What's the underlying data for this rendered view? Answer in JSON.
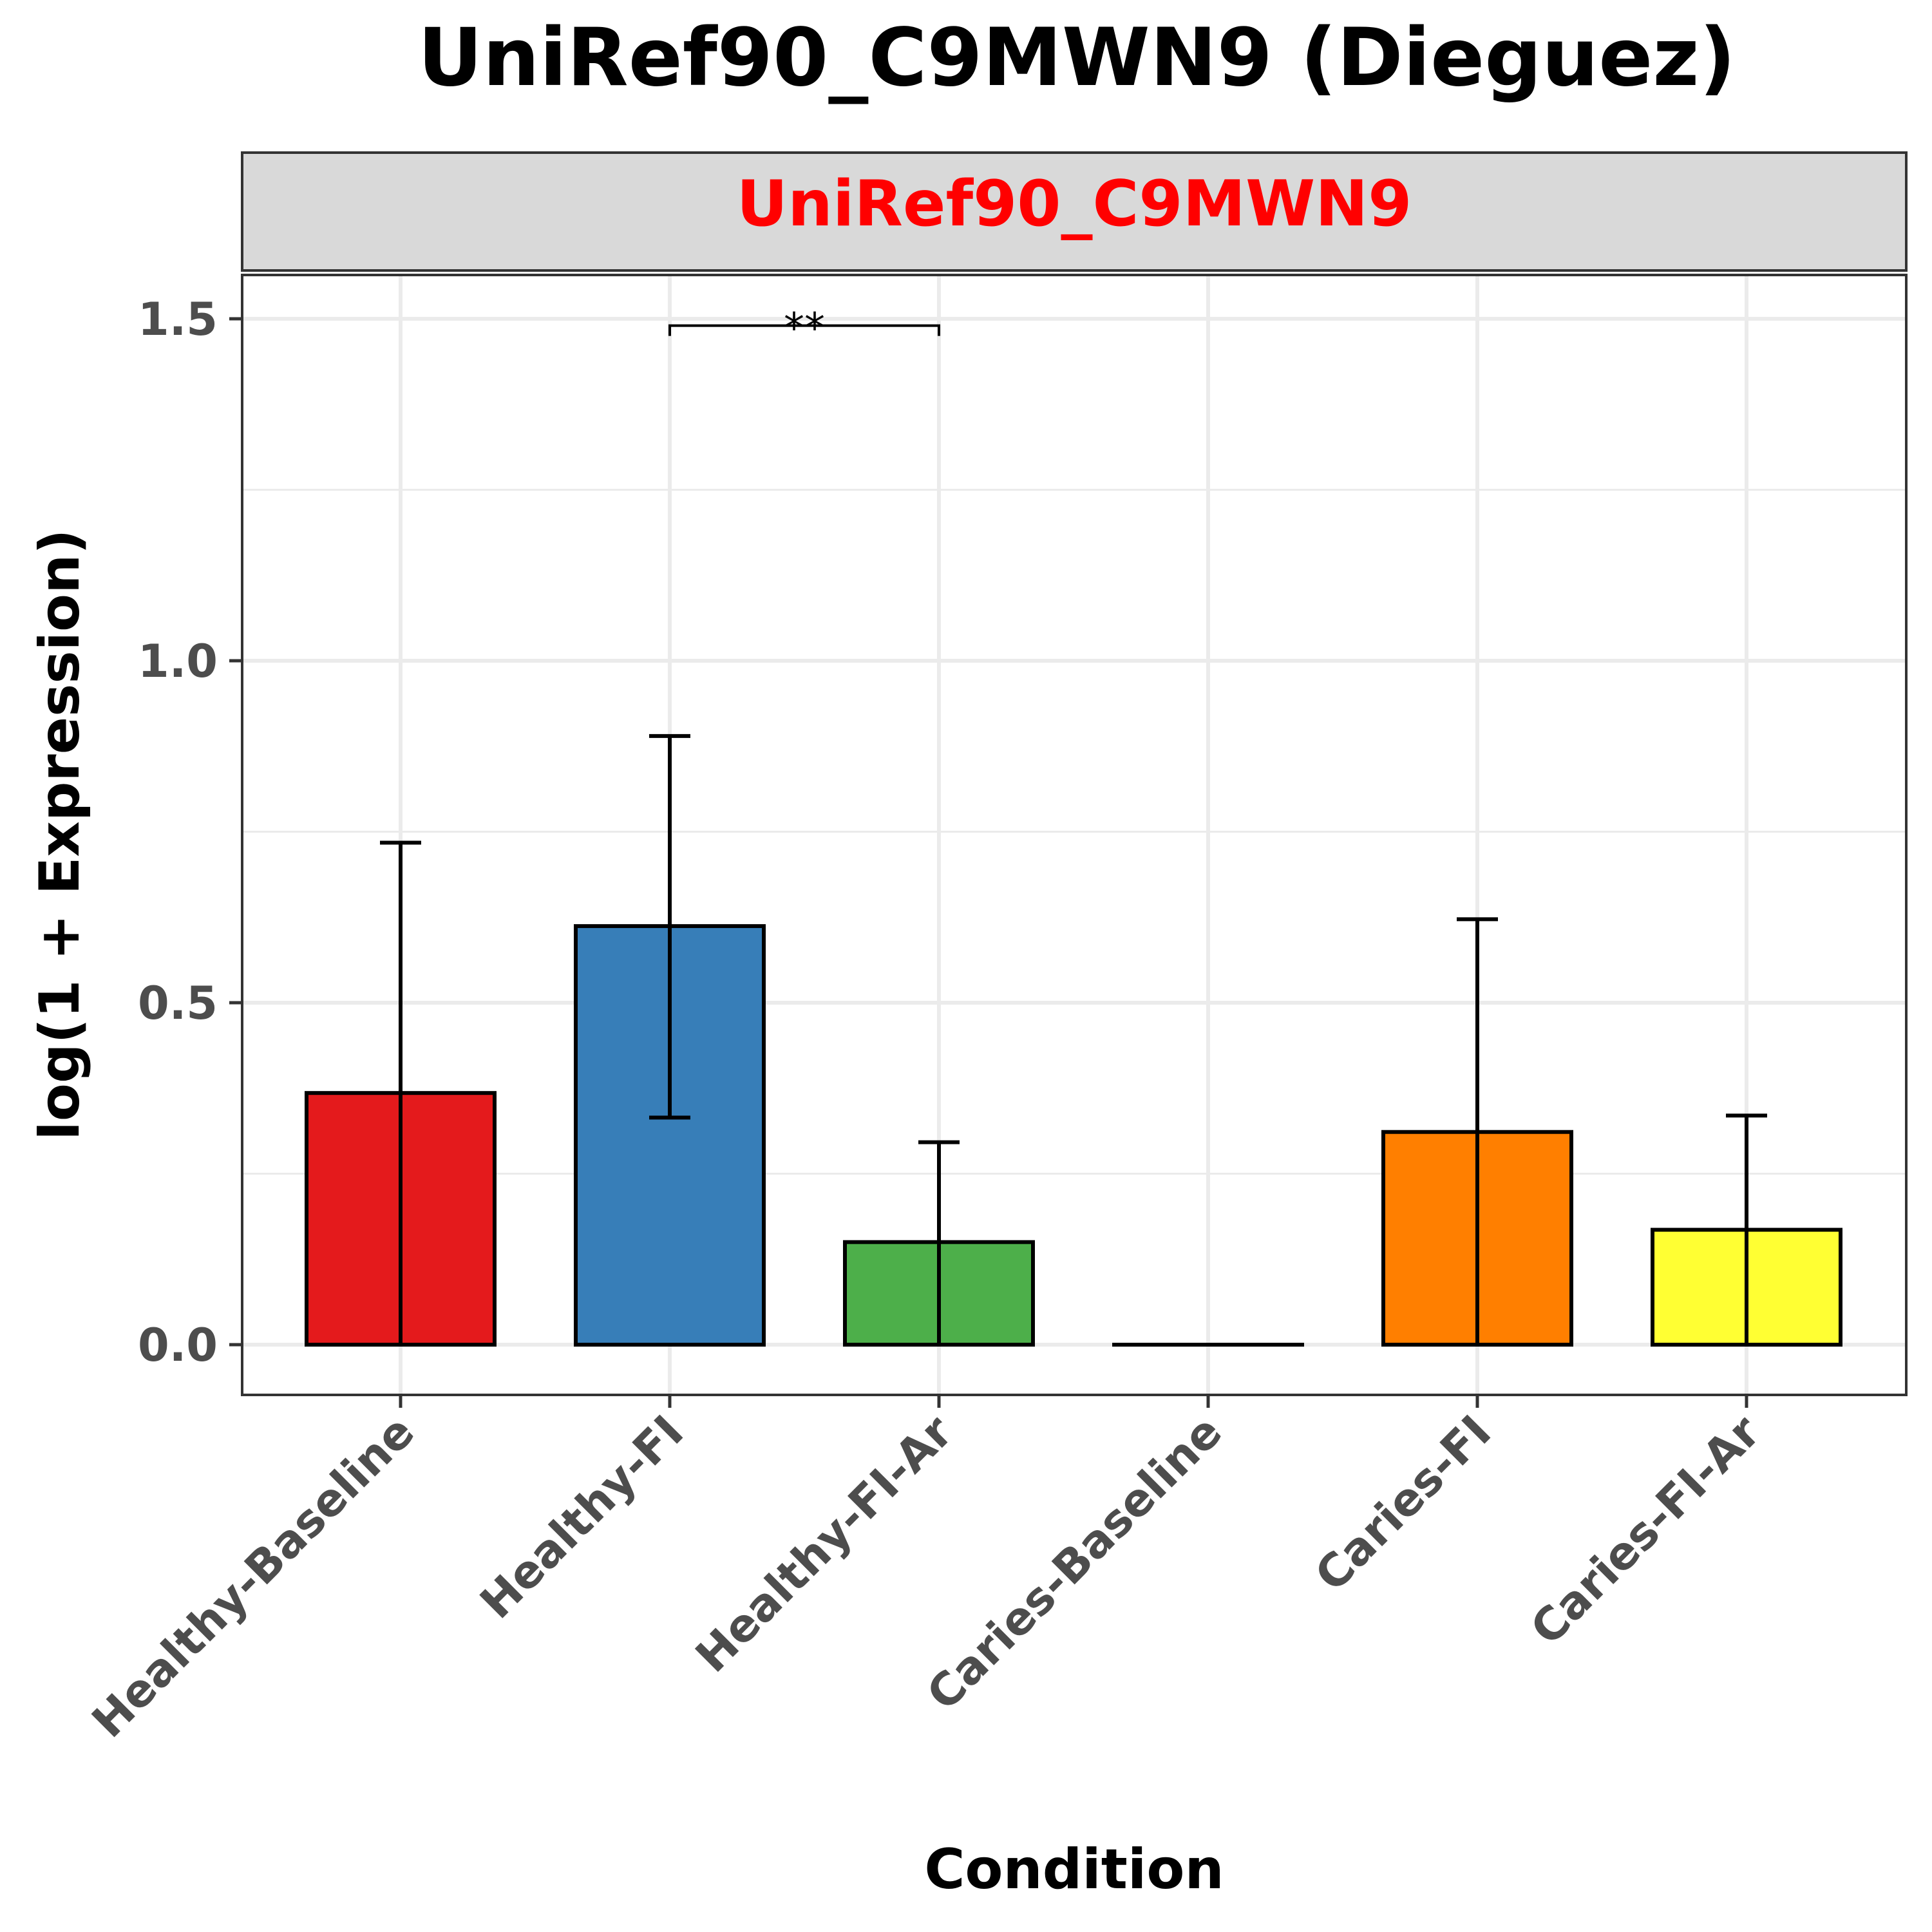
{
  "chart_data": {
    "type": "bar",
    "title": "UniRef90_C9MWN9 (Dieguez)",
    "facet_label": "UniRef90_C9MWN9",
    "xlabel": "Condition",
    "ylabel": "log(1 + Expression)",
    "ylim": [
      -0.07,
      1.56
    ],
    "yticks": [
      0.0,
      0.5,
      1.0,
      1.5
    ],
    "ytick_labels": [
      "0.0",
      "0.5",
      "1.0",
      "1.5"
    ],
    "grid": true,
    "categories": [
      "Healthy-Baseline",
      "Healthy-FI",
      "Healthy-FI-Ar",
      "Caries-Baseline",
      "Caries-FI",
      "Caries-FI-Ar"
    ],
    "values": [
      0.368,
      0.612,
      0.15,
      0.0,
      0.311,
      0.168
    ],
    "error_lower": [
      0.0,
      0.332,
      0.0,
      0.0,
      0.0,
      0.0
    ],
    "error_upper": [
      0.734,
      0.89,
      0.296,
      0.0,
      0.622,
      0.335
    ],
    "colors": [
      "#e41a1c",
      "#377eb8",
      "#4daf4a",
      "#984ea3",
      "#ff7f00",
      "#ffff33"
    ],
    "facet_label_color": "#ff0000",
    "significance": [
      {
        "from": "Healthy-FI",
        "to": "Healthy-FI-Ar",
        "label": "**",
        "y": 1.49
      }
    ]
  }
}
